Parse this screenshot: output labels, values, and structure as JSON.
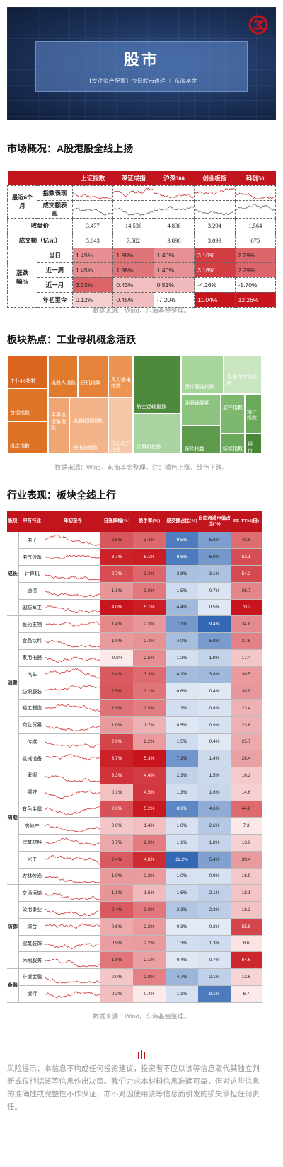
{
  "banner": {
    "title": "股市",
    "subtitle": "【专注资产配置】今日股市速递 ｜ 东海基金"
  },
  "section1": {
    "heading": "市场概况：A股港股全线上扬",
    "source": "数据来源：Wind，东海基金整理。",
    "columns": [
      "上证指数",
      "深证成指",
      "沪深300",
      "创业板指",
      "科创50"
    ],
    "spark_group_label": "最近6个月",
    "spark_rows": [
      "指数表现",
      "成交额表现"
    ],
    "close_label": "收盘价",
    "close": [
      "3,477",
      "14,536",
      "4,836",
      "3,294",
      "1,564"
    ],
    "turnover_label": "成交额（亿元）",
    "turnover": [
      "5,643",
      "7,582",
      "3,896",
      "3,099",
      "675"
    ],
    "chg_group_label": "涨跌幅%",
    "chg_rows": [
      {
        "label": "当日",
        "values": [
          "1.45%",
          "1.98%",
          "1.40%",
          "3.16%",
          "2.29%"
        ]
      },
      {
        "label": "近一周",
        "values": [
          "1.45%",
          "1.98%",
          "1.40%",
          "3.16%",
          "2.29%"
        ]
      },
      {
        "label": "近一月",
        "values": [
          "2.33%",
          "0.43%",
          "0.51%",
          "-4.26%",
          "-1.70%"
        ]
      },
      {
        "label": "年初至今",
        "values": [
          "0.12%",
          "0.45%",
          "-7.20%",
          "11.04%",
          "12.26%"
        ]
      }
    ]
  },
  "section2": {
    "heading": "板块热点：工业母机概念活跃",
    "source": "数据来源：Wind，东海基金整理。注：橘色上涨、绿色下跌。",
    "tiles": [
      "工业4.0指数",
      "机器人指数",
      "打机指数",
      "风力发电指数",
      "航空运输指数",
      "医疗服务指数",
      "半导体材料指数",
      "首钢指数",
      "半导体设备指数",
      "机器视觉指数",
      "锂电池指数",
      "核心资产指数",
      "芯片龙头指数",
      "光刻胶指数",
      "计算机指数",
      "机床指数",
      "油服通周期",
      "保险指数",
      "软件指数",
      "统计指数",
      "纺织指数",
      "银行"
    ]
  },
  "section3": {
    "heading": "行业表现：板块全线上行",
    "source": "数据来源：Wind，东海基金整理。",
    "headers": [
      "板块",
      "申万行业",
      "年初至今",
      "日涨跌幅(%)",
      "换手率(%)",
      "成交额占比(%)",
      "自由流通市值占比(%)",
      "PE-TTM(倍)"
    ],
    "groups": [
      {
        "name": "成长",
        "rows": [
          {
            "name": "电子",
            "v": [
              "2.5%",
              "3.4%",
              "9.5%",
              "5.6%",
              "43.8"
            ]
          },
          {
            "name": "电气设备",
            "v": [
              "3.7%",
              "5.1%",
              "9.6%",
              "6.0%",
              "53.1"
            ]
          },
          {
            "name": "计算机",
            "v": [
              "2.7%",
              "3.4%",
              "3.8%",
              "3.1%",
              "54.2"
            ]
          },
          {
            "name": "通信",
            "v": [
              "1.1%",
              "3.0%",
              "1.5%",
              "0.7%",
              "36.7"
            ]
          },
          {
            "name": "国防军工",
            "v": [
              "4.0%",
              "5.1%",
              "4.4%",
              "0.5%",
              "70.2"
            ]
          }
        ]
      },
      {
        "name": "消费",
        "rows": [
          {
            "name": "医药生物",
            "v": [
              "1.4%",
              "2.3%",
              "7.1%",
              "9.4%",
              "34.8"
            ]
          },
          {
            "name": "食品饮料",
            "v": [
              "1.0%",
              "2.4%",
              "4.0%",
              "5.8%",
              "37.6"
            ]
          },
          {
            "name": "家用电器",
            "v": [
              "-0.8%",
              "2.5%",
              "1.2%",
              "1.9%",
              "17.4"
            ]
          },
          {
            "name": "汽车",
            "v": [
              "2.4%",
              "3.3%",
              "4.2%",
              "3.8%",
              "30.5"
            ]
          },
          {
            "name": "纺织服装",
            "v": [
              "2.5%",
              "3.1%",
              "0.6%",
              "0.4%",
              "30.9"
            ]
          },
          {
            "name": "轻工制造",
            "v": [
              "1.9%",
              "2.9%",
              "1.3%",
              "0.8%",
              "23.4"
            ]
          },
          {
            "name": "商业贸易",
            "v": [
              "1.0%",
              "1.7%",
              "0.5%",
              "0.9%",
              "23.6"
            ]
          },
          {
            "name": "传媒",
            "v": [
              "2.9%",
              "2.2%",
              "1.5%",
              "0.4%",
              "25.7"
            ]
          }
        ]
      },
      {
        "name": "周期",
        "rows": [
          {
            "name": "机械设备",
            "v": [
              "3.7%",
              "5.3%",
              "7.3%",
              "1.4%",
              "28.4"
            ]
          },
          {
            "name": "采掘",
            "v": [
              "3.3%",
              "4.4%",
              "2.3%",
              "1.5%",
              "16.2"
            ]
          },
          {
            "name": "钢铁",
            "v": [
              "0.1%",
              "4.5%",
              "1.3%",
              "1.6%",
              "14.6"
            ]
          },
          {
            "name": "有色金属",
            "v": [
              "2.6%",
              "5.2%",
              "8.6%",
              "4.6%",
              "44.8"
            ]
          },
          {
            "name": "房地产",
            "v": [
              "0.0%",
              "1.4%",
              "1.0%",
              "2.6%",
              "7.3"
            ]
          },
          {
            "name": "建筑材料",
            "v": [
              "0.7%",
              "2.9%",
              "1.1%",
              "1.8%",
              "13.9"
            ]
          },
          {
            "name": "化工",
            "v": [
              "2.4%",
              "4.8%",
              "11.2%",
              "5.4%",
              "30.4"
            ]
          },
          {
            "name": "农林牧渔",
            "v": [
              "1.0%",
              "2.2%",
              "1.0%",
              "0.9%",
              "16.9"
            ]
          }
        ]
      },
      {
        "name": "防御",
        "rows": [
          {
            "name": "交通运输",
            "v": [
              "1.1%",
              "1.5%",
              "1.6%",
              "2.1%",
              "18.1"
            ]
          },
          {
            "name": "公用事业",
            "v": [
              "2.4%",
              "3.0%",
              "3.3%",
              "2.3%",
              "18.3"
            ]
          },
          {
            "name": "综合",
            "v": [
              "0.6%",
              "2.2%",
              "0.3%",
              "0.3%",
              "55.5"
            ]
          },
          {
            "name": "建筑装饰",
            "v": [
              "0.9%",
              "2.2%",
              "1.3%",
              "1.3%",
              "8.6"
            ]
          },
          {
            "name": "休闲服务",
            "v": [
              "1.8%",
              "2.1%",
              "0.4%",
              "0.7%",
              "64.6"
            ]
          }
        ]
      },
      {
        "name": "金融",
        "rows": [
          {
            "name": "非银金融",
            "v": [
              "0.0%",
              "2.8%",
              "4.7%",
              "2.1%",
              "13.6"
            ]
          },
          {
            "name": "银行",
            "v": [
              "0.2%",
              "0.4%",
              "1.1%",
              "8.1%",
              "6.7"
            ]
          }
        ]
      }
    ]
  },
  "footer": {
    "risk": "风险提示：本信息不构成任何投资建议，投资者不应以该等信息取代其独立判断或仅根据该等信息作出决策。我们力求本材料信息准确可靠，但对这些信息的准确性或完整性不作保证，亦不对因使用该等信息而引发的损失承担任何责任。"
  },
  "colors": {
    "brand_red": "#c1141c",
    "up_strong": "#d7161d",
    "blue_strong": "#3a6db4",
    "tree_orange": "#e07b2e",
    "tree_green": "#4e8a3c"
  }
}
